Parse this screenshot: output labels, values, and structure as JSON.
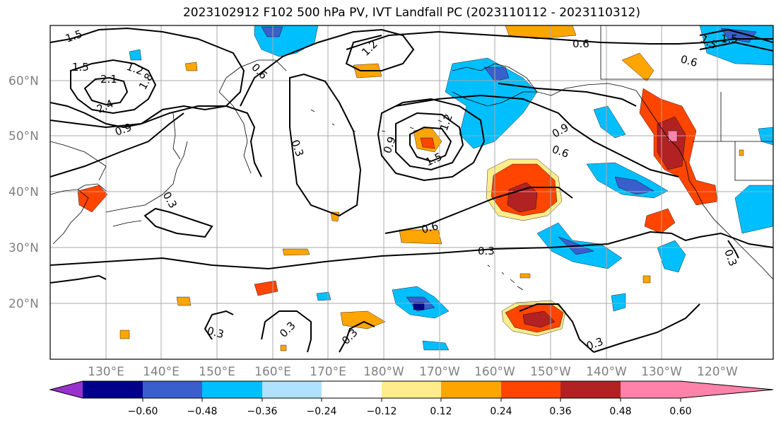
{
  "title": "2023102912 F102 500 hPa PV, IVT Landfall PC (2023110112 - 2023110312)",
  "colors": {
    "c1": "#9932CC",
    "c2": "#00008B",
    "c3": "#3A5FCD",
    "c4": "#00BFFF",
    "c5": "#B0E2FF",
    "c6": "#FFFFFF",
    "c7": "#FFEC8B",
    "c8": "#FFA500",
    "c9": "#FF4500",
    "c10": "#B22222",
    "c11": "#FF82AB",
    "grid": "#a9a9a9",
    "coast": "#000000",
    "contour": "#000000"
  },
  "lat_labels": [
    "60°N",
    "50°N",
    "40°N",
    "30°N",
    "20°N"
  ],
  "lon_labels": [
    "130°E",
    "140°E",
    "150°E",
    "160°E",
    "170°E",
    "180°W",
    "170°W",
    "160°W",
    "150°W",
    "140°W",
    "130°W",
    "120°W"
  ],
  "colorbar": {
    "ticks": [
      "−0.60",
      "−0.48",
      "−0.36",
      "−0.24",
      "−0.12",
      "0.12",
      "0.24",
      "0.36",
      "0.48",
      "0.60"
    ]
  },
  "contour_labels": [
    "1.5",
    "1.5",
    "1.2",
    "2.1",
    "2.4",
    "1.8",
    "0.9",
    "0.6",
    "0.3",
    "0.3",
    "1.2",
    "0.9",
    "1.5",
    "1.2",
    "0.6",
    "0.9",
    "0.6",
    "1.5",
    "1.5",
    "0.6",
    "0.3",
    "0.3",
    "0.3",
    "0.3",
    "0.3",
    "0.3",
    "0.6"
  ]
}
